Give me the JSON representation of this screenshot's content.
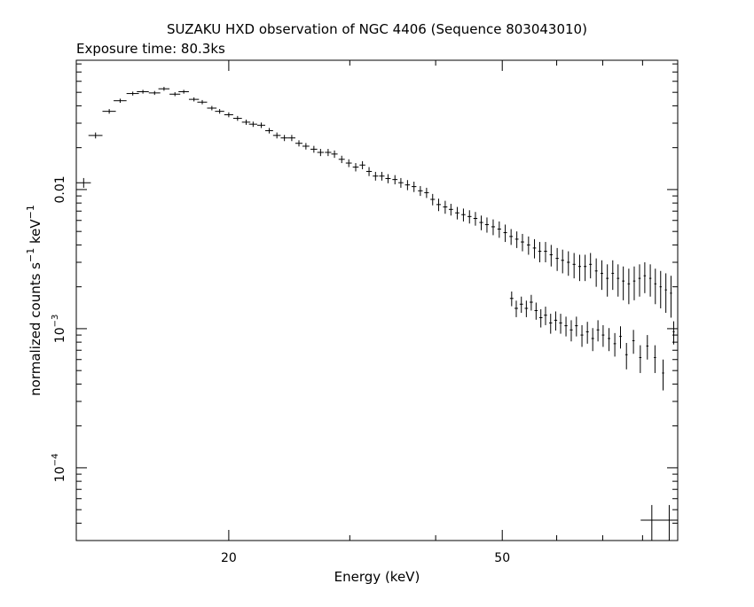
{
  "chart_data": {
    "type": "scatter",
    "title": "SUZAKU HXD observation of NGC 4406 (Sequence 803043010)",
    "subtitle": "Exposure time: 80.3ks",
    "xlabel": "Energy (keV)",
    "ylabel": "normalized counts s",
    "ylabel_sup1": "−1",
    "ylabel_unit": " keV",
    "ylabel_sup2": "−1",
    "xscale": "log",
    "yscale": "log",
    "xlim": [
      12.0,
      90.0
    ],
    "ylim": [
      3e-05,
      0.085
    ],
    "x_ticks": [
      {
        "value": 20,
        "label": "20"
      },
      {
        "value": 50,
        "label": "50"
      }
    ],
    "y_ticks": [
      {
        "value": 0.01,
        "label": "0.01"
      },
      {
        "value": 0.001,
        "label": "10",
        "sup": "−3"
      },
      {
        "value": 0.0001,
        "label": "10",
        "sup": "−4"
      }
    ],
    "grid": false,
    "series": [
      {
        "color": "#000000",
        "points": [
          [
            12.3,
            0.0112,
            0.3,
            0.0009
          ],
          [
            12.8,
            0.0245,
            0.3,
            0.0012
          ],
          [
            13.4,
            0.0365,
            0.3,
            0.0014
          ],
          [
            13.9,
            0.0435,
            0.3,
            0.0015
          ],
          [
            14.5,
            0.049,
            0.3,
            0.0016
          ],
          [
            15.0,
            0.0505,
            0.3,
            0.0016
          ],
          [
            15.6,
            0.0495,
            0.3,
            0.0016
          ],
          [
            16.1,
            0.053,
            0.3,
            0.0017
          ],
          [
            16.7,
            0.0485,
            0.3,
            0.0016
          ],
          [
            17.2,
            0.0505,
            0.3,
            0.0016
          ],
          [
            17.8,
            0.0445,
            0.3,
            0.0015
          ],
          [
            18.3,
            0.0425,
            0.3,
            0.0015
          ],
          [
            18.9,
            0.0385,
            0.3,
            0.0014
          ],
          [
            19.4,
            0.0365,
            0.3,
            0.0014
          ],
          [
            20.0,
            0.0345,
            0.3,
            0.0014
          ],
          [
            20.6,
            0.0325,
            0.3,
            0.0013
          ],
          [
            21.2,
            0.0305,
            0.3,
            0.0013
          ],
          [
            21.7,
            0.0295,
            0.3,
            0.0013
          ],
          [
            22.3,
            0.029,
            0.3,
            0.0013
          ],
          [
            22.9,
            0.0265,
            0.3,
            0.0012
          ],
          [
            23.5,
            0.0245,
            0.3,
            0.0012
          ],
          [
            24.1,
            0.0235,
            0.3,
            0.0012
          ],
          [
            24.7,
            0.0235,
            0.3,
            0.0012
          ],
          [
            25.3,
            0.0215,
            0.3,
            0.0011
          ],
          [
            25.9,
            0.0205,
            0.3,
            0.0011
          ],
          [
            26.6,
            0.0195,
            0.3,
            0.0011
          ],
          [
            27.2,
            0.0185,
            0.3,
            0.0011
          ],
          [
            27.9,
            0.0185,
            0.3,
            0.0011
          ],
          [
            28.5,
            0.018,
            0.3,
            0.0011
          ],
          [
            29.2,
            0.0165,
            0.3,
            0.001
          ],
          [
            29.9,
            0.0155,
            0.3,
            0.001
          ],
          [
            30.6,
            0.0145,
            0.3,
            0.001
          ],
          [
            31.3,
            0.015,
            0.3,
            0.001
          ],
          [
            32.0,
            0.0135,
            0.3,
            0.001
          ],
          [
            32.7,
            0.0125,
            0.3,
            0.0009
          ],
          [
            33.4,
            0.0125,
            0.3,
            0.0009
          ],
          [
            34.1,
            0.012,
            0.3,
            0.0009
          ],
          [
            34.9,
            0.0118,
            0.3,
            0.0009
          ],
          [
            35.6,
            0.0112,
            0.3,
            0.0009
          ],
          [
            36.4,
            0.0108,
            0.3,
            0.0009
          ],
          [
            37.2,
            0.0105,
            0.3,
            0.0009
          ],
          [
            38.0,
            0.0098,
            0.3,
            0.0008
          ],
          [
            38.8,
            0.0095,
            0.3,
            0.0008
          ],
          [
            39.6,
            0.0085,
            0.3,
            0.0008
          ],
          [
            40.4,
            0.0078,
            0.3,
            0.0008
          ],
          [
            41.3,
            0.0075,
            0.3,
            0.0008
          ],
          [
            42.1,
            0.0072,
            0.3,
            0.0007
          ],
          [
            43.0,
            0.0068,
            0.3,
            0.0007
          ],
          [
            43.9,
            0.0066,
            0.3,
            0.0007
          ],
          [
            44.8,
            0.0064,
            0.3,
            0.0007
          ],
          [
            45.7,
            0.0062,
            0.3,
            0.0007
          ],
          [
            46.6,
            0.0058,
            0.3,
            0.0007
          ],
          [
            47.5,
            0.0056,
            0.3,
            0.0007
          ],
          [
            48.5,
            0.0054,
            0.3,
            0.0007
          ],
          [
            49.5,
            0.0052,
            0.3,
            0.0007
          ],
          [
            50.5,
            0.0049,
            0.3,
            0.0007
          ],
          [
            51.5,
            0.0046,
            0.3,
            0.0006
          ],
          [
            52.5,
            0.0044,
            0.3,
            0.0006
          ],
          [
            53.5,
            0.0042,
            0.3,
            0.0006
          ],
          [
            54.6,
            0.004,
            0.3,
            0.0006
          ],
          [
            55.7,
            0.0038,
            0.3,
            0.0006
          ],
          [
            56.7,
            0.0036,
            0.3,
            0.0006
          ],
          [
            57.8,
            0.0036,
            0.3,
            0.0006
          ],
          [
            58.9,
            0.0034,
            0.3,
            0.0006
          ],
          [
            60.1,
            0.0032,
            0.3,
            0.0006
          ],
          [
            61.2,
            0.0031,
            0.3,
            0.0006
          ],
          [
            62.4,
            0.003,
            0.3,
            0.0006
          ],
          [
            63.6,
            0.0029,
            0.3,
            0.0006
          ],
          [
            64.8,
            0.0028,
            0.3,
            0.0006
          ],
          [
            66.0,
            0.0028,
            0.3,
            0.0006
          ],
          [
            67.2,
            0.0029,
            0.3,
            0.0006
          ],
          [
            68.5,
            0.0026,
            0.3,
            0.0006
          ],
          [
            69.8,
            0.0025,
            0.3,
            0.0006
          ],
          [
            71.1,
            0.0023,
            0.3,
            0.0006
          ],
          [
            72.4,
            0.0025,
            0.3,
            0.0006
          ],
          [
            73.7,
            0.0023,
            0.3,
            0.0006
          ],
          [
            75.0,
            0.0022,
            0.3,
            0.0006
          ],
          [
            76.4,
            0.0021,
            0.3,
            0.0006
          ],
          [
            77.8,
            0.0022,
            0.3,
            0.0006
          ],
          [
            79.2,
            0.0023,
            0.3,
            0.0006
          ],
          [
            80.6,
            0.0024,
            0.3,
            0.0006
          ],
          [
            82.1,
            0.0023,
            0.3,
            0.0006
          ],
          [
            83.5,
            0.0021,
            0.3,
            0.0006
          ],
          [
            85.0,
            0.002,
            0.3,
            0.0006
          ],
          [
            86.5,
            0.0019,
            0.3,
            0.0006
          ],
          [
            88.0,
            0.0018,
            0.3,
            0.0006
          ],
          [
            88.8,
            0.00095,
            0.3,
            0.00018
          ],
          [
            85.7,
            0.00048,
            0.3,
            0.00012
          ],
          [
            83.4,
            0.00062,
            0.3,
            0.00014
          ],
          [
            81.3,
            0.00075,
            0.3,
            0.00015
          ],
          [
            79.4,
            0.00062,
            0.3,
            0.00014
          ],
          [
            77.6,
            0.00082,
            0.3,
            0.00016
          ],
          [
            75.8,
            0.00065,
            0.3,
            0.00014
          ],
          [
            74.3,
            0.00088,
            0.3,
            0.00016
          ],
          [
            72.9,
            0.00078,
            0.3,
            0.00015
          ],
          [
            71.5,
            0.00085,
            0.3,
            0.00016
          ],
          [
            70.1,
            0.0009,
            0.3,
            0.00016
          ],
          [
            68.9,
            0.00098,
            0.3,
            0.00017
          ],
          [
            67.7,
            0.00085,
            0.3,
            0.00016
          ],
          [
            66.5,
            0.00095,
            0.3,
            0.00017
          ],
          [
            65.3,
            0.0009,
            0.3,
            0.00016
          ],
          [
            64.1,
            0.00105,
            0.3,
            0.00017
          ],
          [
            63.0,
            0.00098,
            0.3,
            0.00017
          ],
          [
            61.9,
            0.00105,
            0.3,
            0.00017
          ],
          [
            60.8,
            0.0011,
            0.3,
            0.00018
          ],
          [
            59.8,
            0.00115,
            0.3,
            0.00018
          ],
          [
            58.8,
            0.0011,
            0.3,
            0.00018
          ],
          [
            57.8,
            0.00125,
            0.3,
            0.00019
          ],
          [
            56.9,
            0.0012,
            0.3,
            0.00018
          ],
          [
            56.0,
            0.00135,
            0.3,
            0.00019
          ],
          [
            55.1,
            0.00155,
            0.3,
            0.0002
          ],
          [
            54.2,
            0.0014,
            0.3,
            0.00019
          ],
          [
            53.3,
            0.0015,
            0.3,
            0.0002
          ],
          [
            52.4,
            0.0014,
            0.3,
            0.00019
          ],
          [
            51.6,
            0.00165,
            0.3,
            0.0002
          ]
        ]
      }
    ],
    "annotations": [
      {
        "type": "error-cross",
        "x": 85.0,
        "y": 4.2e-05,
        "xerr": 5.5,
        "yerr": 1.2e-05
      }
    ]
  }
}
